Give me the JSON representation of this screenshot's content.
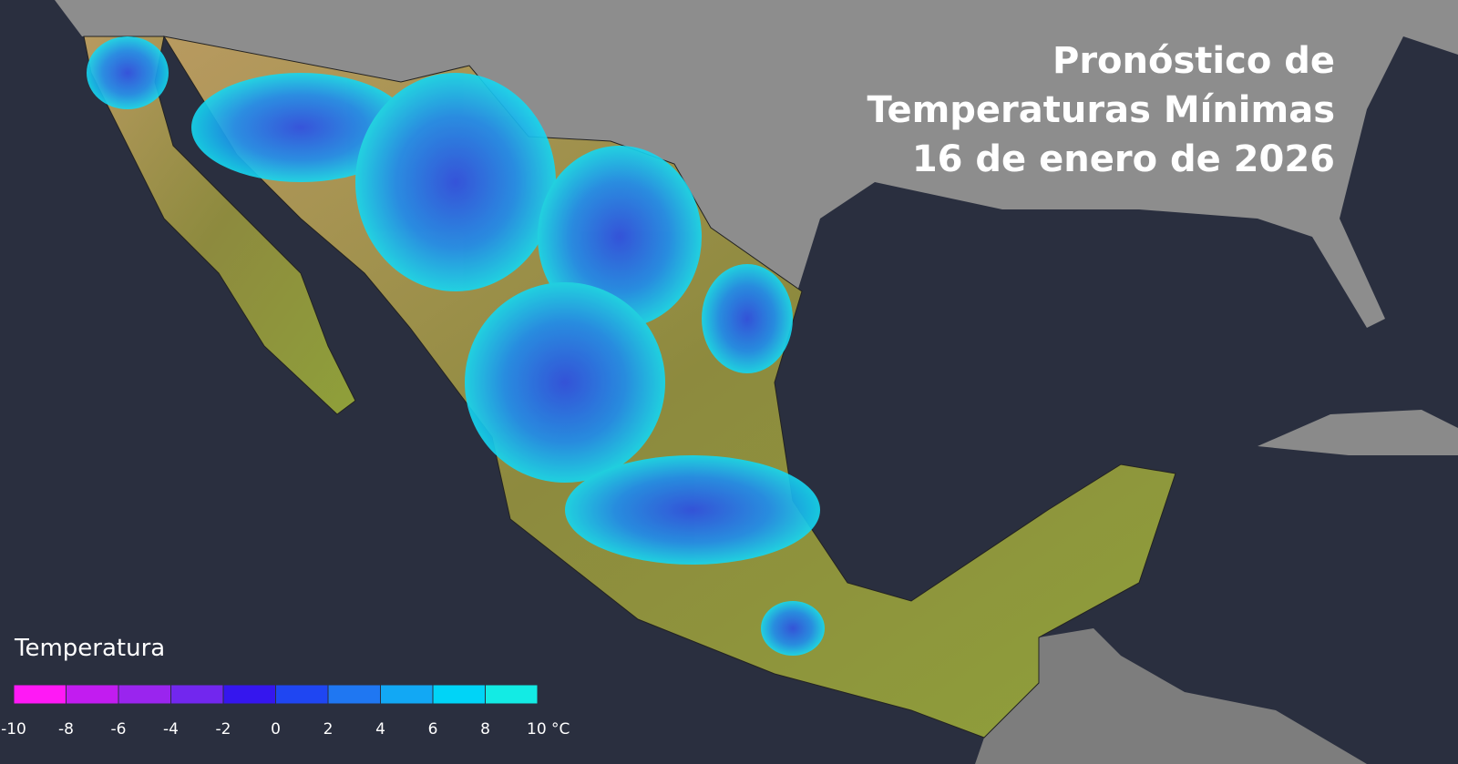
{
  "title": {
    "lines": [
      "Pronóstico de",
      "Temperaturas Mínimas",
      "16 de enero de 2026"
    ]
  },
  "legend": {
    "title": "Temperatura",
    "colors": [
      "#ff19f5",
      "#c21cf0",
      "#9a25ee",
      "#7227ee",
      "#3516ee",
      "#1f46f2",
      "#1f77f2",
      "#12a8f4",
      "#00d4f7",
      "#13ebe4"
    ],
    "ticks": [
      -10,
      -8,
      -6,
      -4,
      -2,
      0,
      2,
      4,
      6,
      8,
      {
        "value": 10,
        "label": "10 °C"
      }
    ]
  }
}
